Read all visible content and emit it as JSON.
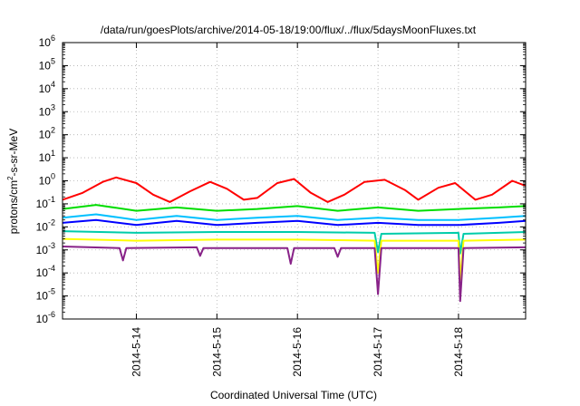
{
  "chart_data": {
    "type": "line",
    "title": "/data/run/goesPlots/archive/2014-05-18/19:00/flux/../flux/5daysMoonFluxes.txt",
    "xlabel": "Coordinated Universal Time (UTC)",
    "ylabel": {
      "prefix": "protons/cm",
      "sup": "2",
      "suffix": "-s-sr-MeV"
    },
    "yscale": "log",
    "ylim": [
      "1e-6",
      "1e6"
    ],
    "yticks": [
      {
        "base": "10",
        "exp": "6"
      },
      {
        "base": "10",
        "exp": "5"
      },
      {
        "base": "10",
        "exp": "4"
      },
      {
        "base": "10",
        "exp": "3"
      },
      {
        "base": "10",
        "exp": "2"
      },
      {
        "base": "10",
        "exp": "1"
      },
      {
        "base": "10",
        "exp": "0"
      },
      {
        "base": "10",
        "exp": "-1"
      },
      {
        "base": "10",
        "exp": "-2"
      },
      {
        "base": "10",
        "exp": "-3"
      },
      {
        "base": "10",
        "exp": "-4"
      },
      {
        "base": "10",
        "exp": "-5"
      },
      {
        "base": "10",
        "exp": "-6"
      }
    ],
    "xlim": [
      "2014-05-13 02:00",
      "2014-05-18 20:00"
    ],
    "xticks": [
      "2014-5-14",
      "2014-5-15",
      "2014-5-16",
      "2014-5-17",
      "2014-5-18"
    ],
    "grid": true,
    "series": [
      {
        "color": "#ff0000",
        "points": [
          [
            "2014-05-13 02:00",
            0.15
          ],
          [
            "2014-05-13 08:00",
            0.3
          ],
          [
            "2014-05-13 14:00",
            0.9
          ],
          [
            "2014-05-13 18:00",
            1.4
          ],
          [
            "2014-05-14 00:00",
            0.8
          ],
          [
            "2014-05-14 05:00",
            0.25
          ],
          [
            "2014-05-14 10:00",
            0.12
          ],
          [
            "2014-05-14 16:00",
            0.35
          ],
          [
            "2014-05-14 22:00",
            0.9
          ],
          [
            "2014-05-15 03:00",
            0.45
          ],
          [
            "2014-05-15 08:00",
            0.15
          ],
          [
            "2014-05-15 12:00",
            0.18
          ],
          [
            "2014-05-15 18:00",
            0.8
          ],
          [
            "2014-05-15 23:00",
            1.2
          ],
          [
            "2014-05-16 04:00",
            0.3
          ],
          [
            "2014-05-16 09:00",
            0.12
          ],
          [
            "2014-05-16 14:00",
            0.25
          ],
          [
            "2014-05-16 20:00",
            0.9
          ],
          [
            "2014-05-17 02:00",
            1.1
          ],
          [
            "2014-05-17 08:00",
            0.4
          ],
          [
            "2014-05-17 12:00",
            0.15
          ],
          [
            "2014-05-17 18:00",
            0.5
          ],
          [
            "2014-05-17 23:00",
            0.8
          ],
          [
            "2014-05-18 05:00",
            0.15
          ],
          [
            "2014-05-18 10:00",
            0.25
          ],
          [
            "2014-05-18 16:00",
            1.0
          ],
          [
            "2014-05-18 20:00",
            0.6
          ]
        ]
      },
      {
        "color": "#00dd00",
        "points": [
          [
            "2014-05-13 02:00",
            0.06
          ],
          [
            "2014-05-13 12:00",
            0.09
          ],
          [
            "2014-05-14 00:00",
            0.05
          ],
          [
            "2014-05-14 12:00",
            0.07
          ],
          [
            "2014-05-15 00:00",
            0.05
          ],
          [
            "2014-05-15 12:00",
            0.06
          ],
          [
            "2014-05-16 00:00",
            0.08
          ],
          [
            "2014-05-16 12:00",
            0.05
          ],
          [
            "2014-05-17 00:00",
            0.07
          ],
          [
            "2014-05-17 12:00",
            0.05
          ],
          [
            "2014-05-18 00:00",
            0.06
          ],
          [
            "2014-05-18 12:00",
            0.07
          ],
          [
            "2014-05-18 20:00",
            0.08
          ]
        ]
      },
      {
        "color": "#00c0ff",
        "points": [
          [
            "2014-05-13 02:00",
            0.025
          ],
          [
            "2014-05-13 12:00",
            0.035
          ],
          [
            "2014-05-14 00:00",
            0.02
          ],
          [
            "2014-05-14 12:00",
            0.03
          ],
          [
            "2014-05-15 00:00",
            0.02
          ],
          [
            "2014-05-15 12:00",
            0.025
          ],
          [
            "2014-05-16 00:00",
            0.03
          ],
          [
            "2014-05-16 12:00",
            0.02
          ],
          [
            "2014-05-17 00:00",
            0.025
          ],
          [
            "2014-05-17 12:00",
            0.02
          ],
          [
            "2014-05-18 00:00",
            0.02
          ],
          [
            "2014-05-18 12:00",
            0.025
          ],
          [
            "2014-05-18 20:00",
            0.03
          ]
        ]
      },
      {
        "color": "#0000ff",
        "points": [
          [
            "2014-05-13 02:00",
            0.015
          ],
          [
            "2014-05-13 12:00",
            0.02
          ],
          [
            "2014-05-14 00:00",
            0.012
          ],
          [
            "2014-05-14 12:00",
            0.018
          ],
          [
            "2014-05-15 00:00",
            0.012
          ],
          [
            "2014-05-15 12:00",
            0.015
          ],
          [
            "2014-05-16 00:00",
            0.018
          ],
          [
            "2014-05-16 12:00",
            0.012
          ],
          [
            "2014-05-17 00:00",
            0.015
          ],
          [
            "2014-05-17 12:00",
            0.012
          ],
          [
            "2014-05-18 00:00",
            0.012
          ],
          [
            "2014-05-18 12:00",
            0.015
          ],
          [
            "2014-05-18 20:00",
            0.018
          ]
        ]
      },
      {
        "color": "#00ccaa",
        "points": [
          [
            "2014-05-13 02:00",
            0.0065
          ],
          [
            "2014-05-14 00:00",
            0.0055
          ],
          [
            "2014-05-15 00:00",
            0.006
          ],
          [
            "2014-05-16 00:00",
            0.006
          ],
          [
            "2014-05-16 23:00",
            0.0055
          ],
          [
            "2014-05-17 00:00",
            0.0008
          ],
          [
            "2014-05-17 01:00",
            0.005
          ],
          [
            "2014-05-18 00:00",
            0.0055
          ],
          [
            "2014-05-18 00:30",
            0.0007
          ],
          [
            "2014-05-18 01:30",
            0.005
          ],
          [
            "2014-05-18 20:00",
            0.006
          ]
        ]
      },
      {
        "color": "#ffff00",
        "points": [
          [
            "2014-05-13 02:00",
            0.003
          ],
          [
            "2014-05-14 00:00",
            0.0025
          ],
          [
            "2014-05-15 00:00",
            0.0028
          ],
          [
            "2014-05-16 00:00",
            0.0028
          ],
          [
            "2014-05-16 23:00",
            0.0025
          ],
          [
            "2014-05-17 00:00",
            0.0001
          ],
          [
            "2014-05-17 01:00",
            0.0025
          ],
          [
            "2014-05-18 00:00",
            0.0025
          ],
          [
            "2014-05-18 00:30",
            5e-05
          ],
          [
            "2014-05-18 01:30",
            0.0025
          ],
          [
            "2014-05-18 20:00",
            0.0028
          ]
        ]
      },
      {
        "color": "#882288",
        "points": [
          [
            "2014-05-13 02:00",
            0.0014
          ],
          [
            "2014-05-13 19:00",
            0.0012
          ],
          [
            "2014-05-13 20:00",
            0.00035
          ],
          [
            "2014-05-13 21:00",
            0.0012
          ],
          [
            "2014-05-14 18:00",
            0.0013
          ],
          [
            "2014-05-14 19:00",
            0.00055
          ],
          [
            "2014-05-14 20:00",
            0.0012
          ],
          [
            "2014-05-15 21:00",
            0.0012
          ],
          [
            "2014-05-15 22:00",
            0.00025
          ],
          [
            "2014-05-15 23:00",
            0.0012
          ],
          [
            "2014-05-16 11:00",
            0.0012
          ],
          [
            "2014-05-16 12:00",
            0.0005
          ],
          [
            "2014-05-16 13:00",
            0.0012
          ],
          [
            "2014-05-16 23:00",
            0.0012
          ],
          [
            "2014-05-17 00:00",
            1.2e-05
          ],
          [
            "2014-05-17 01:00",
            0.0012
          ],
          [
            "2014-05-18 00:00",
            0.0012
          ],
          [
            "2014-05-18 00:30",
            6e-06
          ],
          [
            "2014-05-18 01:30",
            0.0012
          ],
          [
            "2014-05-18 20:00",
            0.0013
          ]
        ]
      }
    ]
  }
}
